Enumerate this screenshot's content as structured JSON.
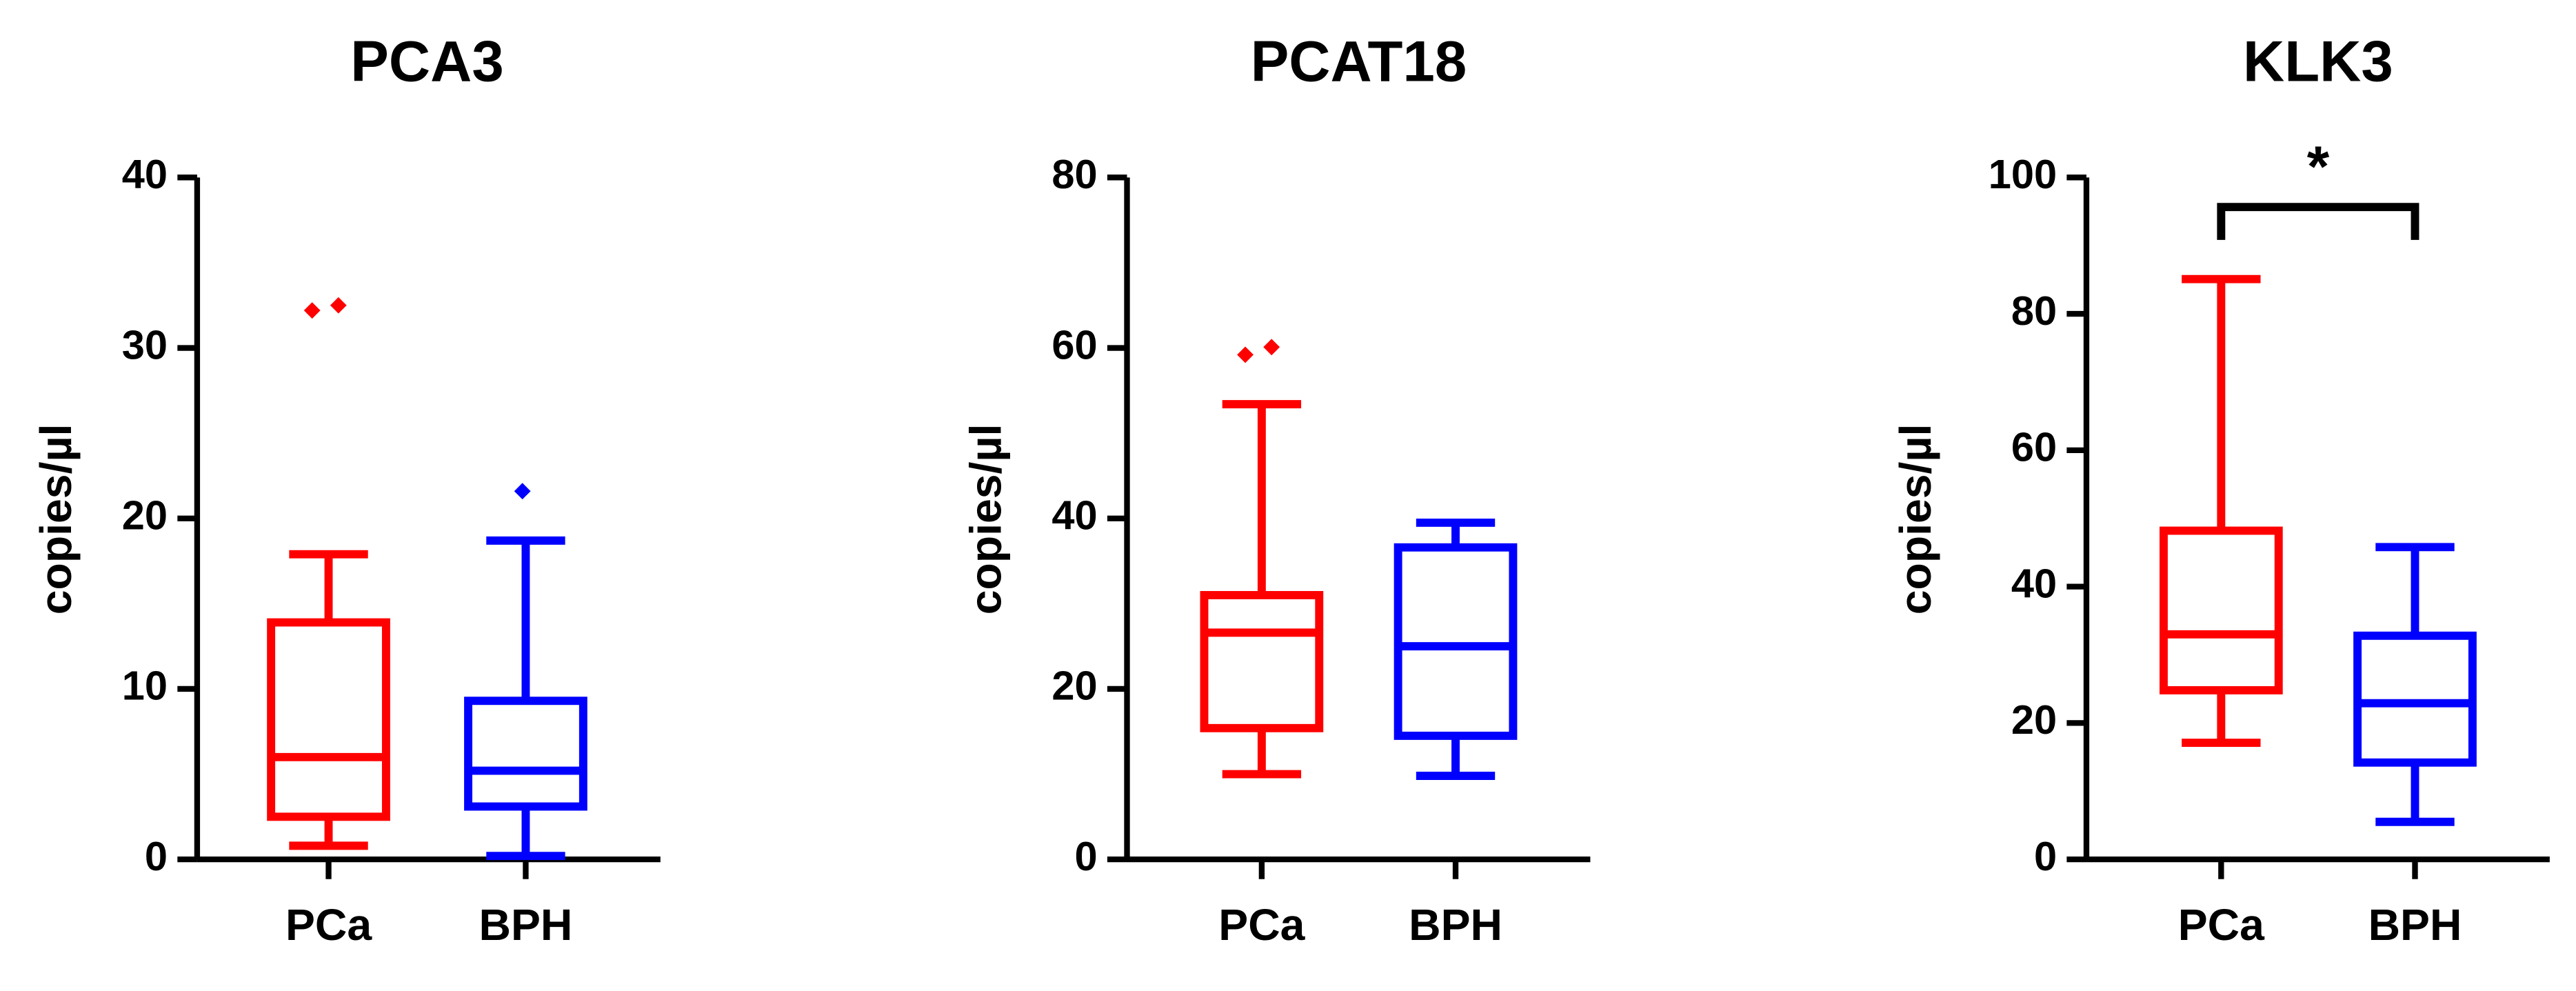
{
  "chart_data": [
    {
      "type": "box",
      "title": "PCA3",
      "y_label": "copies/µl",
      "categories": [
        "PCa",
        "BPH"
      ],
      "ylim": [
        0,
        40
      ],
      "yticks": [
        0,
        10,
        20,
        30,
        40
      ],
      "boxes": [
        {
          "color": "#ff0000",
          "min": 0.8,
          "q1": 2.5,
          "median": 6,
          "q3": 13.9,
          "max": 17.9,
          "outliers": [
            32.2,
            32.5
          ]
        },
        {
          "color": "#0000ff",
          "min": 0.2,
          "q1": 3.1,
          "median": 5.2,
          "q3": 9.3,
          "max": 18.7,
          "outliers": [
            21.6
          ]
        }
      ]
    },
    {
      "type": "box",
      "title": "PCAT18",
      "y_label": "copies/µl",
      "categories": [
        "PCa",
        "BPH"
      ],
      "ylim": [
        0,
        80
      ],
      "yticks": [
        0,
        20,
        40,
        60,
        80
      ],
      "boxes": [
        {
          "color": "#ff0000",
          "min": 10,
          "q1": 15.4,
          "median": 26.6,
          "q3": 31,
          "max": 53.4,
          "outliers": [
            59.2,
            60.1
          ]
        },
        {
          "color": "#0000ff",
          "min": 9.8,
          "q1": 14.5,
          "median": 25,
          "q3": 36.6,
          "max": 39.5,
          "outliers": []
        }
      ]
    },
    {
      "type": "box",
      "title": "KLK3",
      "y_label": "copies/µl",
      "categories": [
        "PCa",
        "BPH"
      ],
      "ylim": [
        0,
        100
      ],
      "yticks": [
        0,
        20,
        40,
        60,
        80,
        100
      ],
      "annotation": "*",
      "boxes": [
        {
          "color": "#ff0000",
          "min": 17.1,
          "q1": 24.8,
          "median": 33,
          "q3": 48.2,
          "max": 85.1,
          "outliers": []
        },
        {
          "color": "#0000ff",
          "min": 5.5,
          "q1": 14.2,
          "median": 22.9,
          "q3": 32.8,
          "max": 45.8,
          "outliers": []
        }
      ]
    }
  ]
}
